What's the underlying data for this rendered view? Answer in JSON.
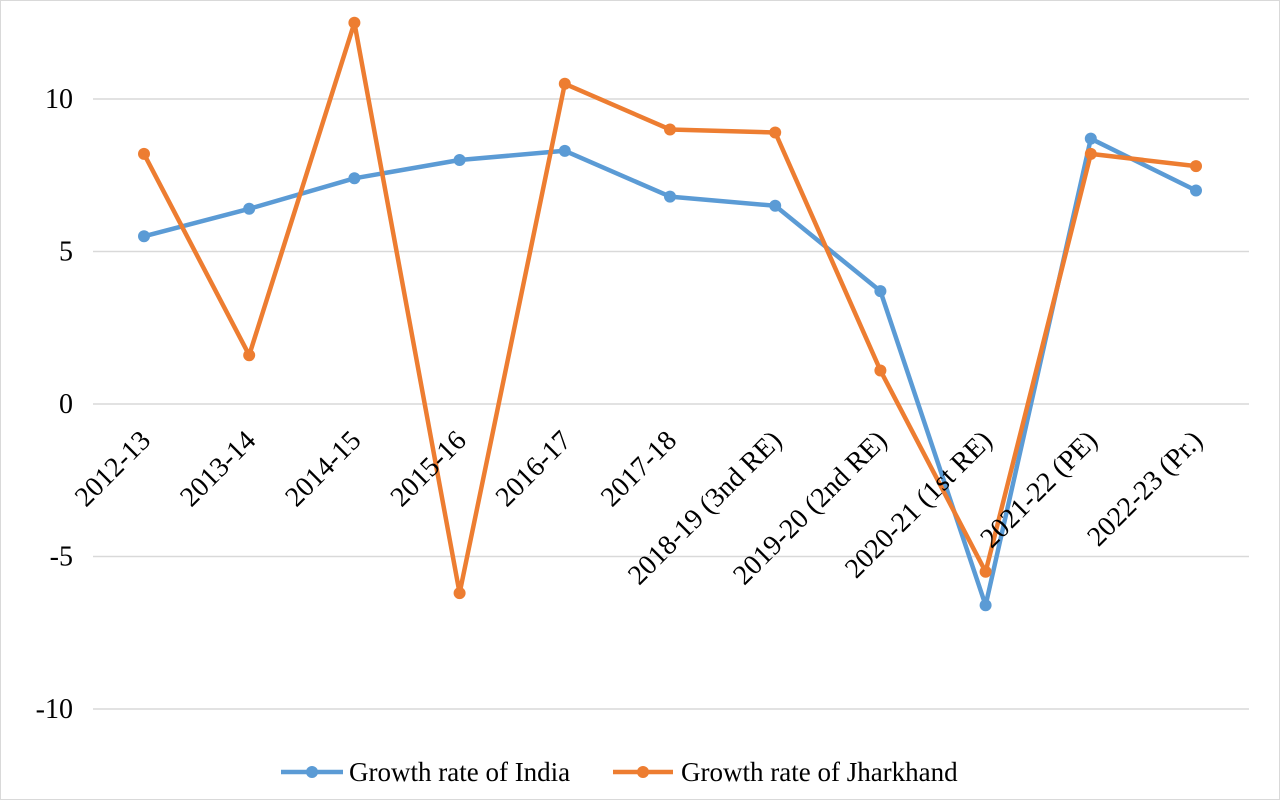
{
  "chart_data": {
    "type": "line",
    "title": "",
    "xlabel": "",
    "ylabel": "",
    "ylim": [
      -10,
      10
    ],
    "yticks": [
      10,
      5,
      0,
      -5,
      -10
    ],
    "ytick_labels": [
      "10",
      "5",
      "0",
      "-5",
      "-10"
    ],
    "grid": true,
    "legend_position": "bottom-center",
    "categories": [
      "2012-13",
      "2013-14",
      "2014-15",
      "2015-16",
      "2016-17",
      "2017-18",
      "2018-19 (3nd RE)",
      "2019-20 (2nd RE)",
      "2020-21 (1st RE)",
      "2021-22 (PE)",
      "2022-23 (Pr.)"
    ],
    "series": [
      {
        "name": "Growth rate of India",
        "color": "#5B9BD5",
        "values": [
          5.5,
          6.4,
          7.4,
          8.0,
          8.3,
          6.8,
          6.5,
          3.7,
          -6.6,
          8.7,
          7.0
        ]
      },
      {
        "name": "Growth rate of Jharkhand",
        "color": "#ED7D31",
        "values": [
          8.2,
          1.6,
          12.5,
          -6.2,
          10.5,
          9.0,
          8.9,
          1.1,
          -5.5,
          8.2,
          7.8
        ]
      }
    ]
  }
}
